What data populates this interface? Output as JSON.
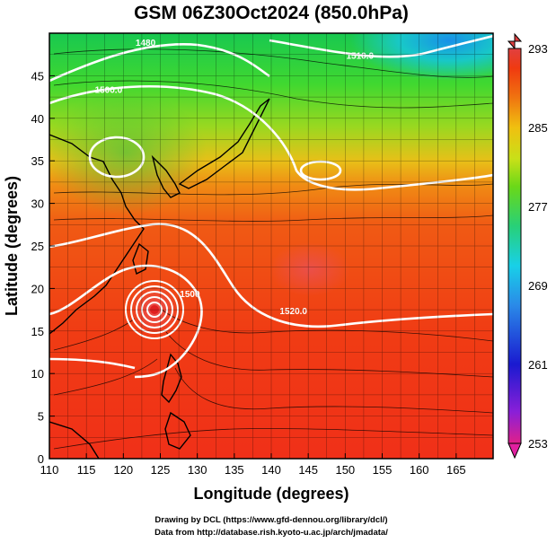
{
  "title": "GSM 06Z30Oct2024 (850.0hPa)",
  "x_axis": {
    "label": "Longitude (degrees)",
    "range": [
      110,
      170
    ],
    "ticks": [
      "110",
      "115",
      "120",
      "125",
      "130",
      "135",
      "140",
      "145",
      "150",
      "155",
      "160",
      "165"
    ]
  },
  "y_axis": {
    "label": "Latitude (degrees)",
    "range": [
      0,
      50
    ],
    "ticks": [
      "0",
      "5",
      "10",
      "15",
      "20",
      "25",
      "30",
      "35",
      "40",
      "45"
    ]
  },
  "colorbar": {
    "range": [
      253,
      293
    ],
    "labels": [
      "293",
      "285",
      "277",
      "269",
      "261",
      "253"
    ],
    "colors": [
      "#e0208a",
      "#8a1fd8",
      "#1a1ad0",
      "#2a8ae8",
      "#18d0e8",
      "#28d078",
      "#6ad818",
      "#c8e018",
      "#f0c010",
      "#f07010",
      "#f03a10",
      "#e04040"
    ]
  },
  "contour_labels": [
    {
      "text": "1480",
      "lon": 123,
      "lat": 48.5
    },
    {
      "text": "1500.0",
      "lon": 118,
      "lat": 43
    },
    {
      "text": "1510.0",
      "lon": 152,
      "lat": 47
    },
    {
      "text": "1520.0",
      "lon": 143,
      "lat": 17
    },
    {
      "text": "1500",
      "lon": 129,
      "lat": 19
    }
  ],
  "credits": [
    "Drawing by DCL (https://www.gfd-dennou.org/library/dcl/)",
    "Data from http://database.rish.kyoto-u.ac.jp/arch/jmadata/"
  ]
}
